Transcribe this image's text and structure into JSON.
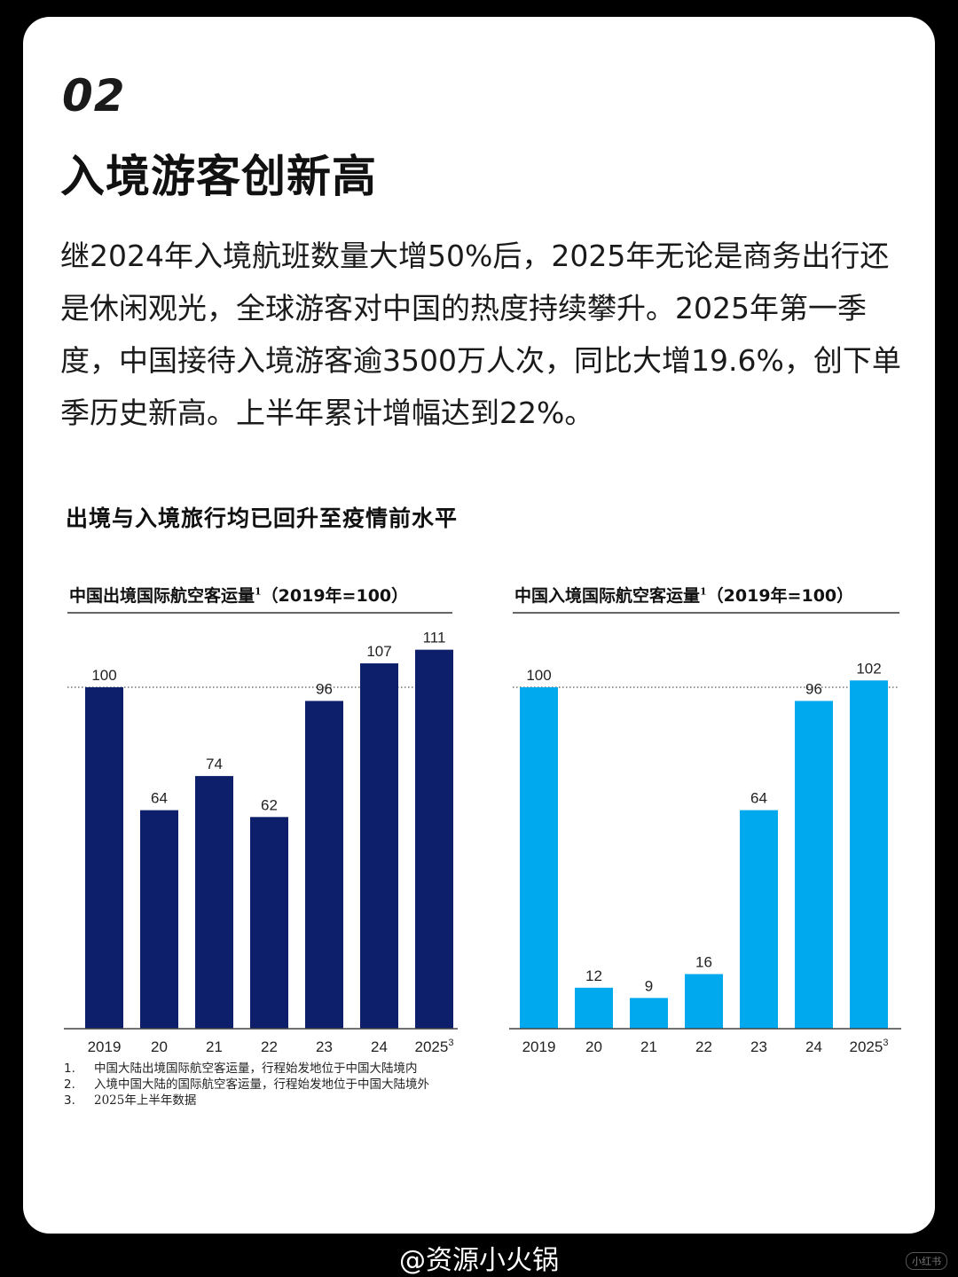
{
  "section_number": "02",
  "headline": "入境游客创新高",
  "body": "继2024年入境航班数量大增50%后，2025年无论是商务出行还是休闲观光，全球游客对中国的热度持续攀升。2025年第一季度，中国接待入境游客逾3500万人次，同比大增19.6%，创下单季历史新高。上半年累计增幅达到22%。",
  "figure_title": "出境与入境旅行均已回升至疫情前水平",
  "chart_data": [
    {
      "type": "bar",
      "title": "中国出境国际航空客运量",
      "title_sup": "1",
      "title_suffix": "（2019年=100）",
      "categories": [
        "2019",
        "20",
        "21",
        "22",
        "23",
        "24",
        "2025"
      ],
      "category_sups": [
        "",
        "",
        "",
        "",
        "",
        "",
        "3"
      ],
      "values": [
        100,
        64,
        74,
        62,
        96,
        107,
        111
      ],
      "value_labels": [
        "100",
        "64",
        "74",
        "62",
        "96",
        "107",
        "111"
      ],
      "reference_line": 100,
      "ylim": [
        0,
        115
      ],
      "color": "#0d1f6b"
    },
    {
      "type": "bar",
      "title": "中国入境国际航空客运量",
      "title_sup": "1",
      "title_suffix": "（2019年=100）",
      "categories": [
        "2019",
        "20",
        "21",
        "22",
        "23",
        "24",
        "2025"
      ],
      "category_sups": [
        "",
        "",
        "",
        "",
        "",
        "",
        "3"
      ],
      "values": [
        100,
        12,
        9,
        16,
        64,
        96,
        102
      ],
      "value_labels": [
        "100",
        "12",
        "9",
        "16",
        "64",
        "96",
        "102"
      ],
      "reference_line": 100,
      "ylim": [
        0,
        115
      ],
      "color": "#00a9ee"
    }
  ],
  "footnotes": [
    {
      "num": "1.",
      "text": "中国大陆出境国际航空客运量，行程始发地位于中国大陆境内"
    },
    {
      "num": "2.",
      "text": "入境中国大陆的国际航空客运量，行程始发地位于中国大陆境外"
    },
    {
      "num": "3.",
      "text": "2025年上半年数据"
    }
  ],
  "watermark": "@资源小火锅",
  "corner_mark": "小红书"
}
